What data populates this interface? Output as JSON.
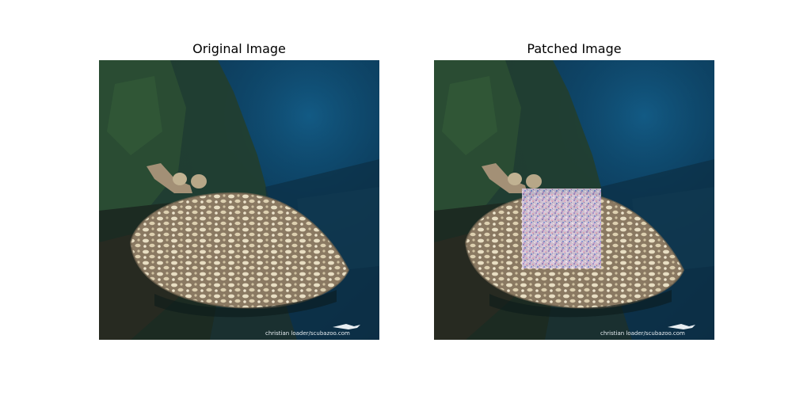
{
  "figure": {
    "panels": [
      {
        "title": "Original Image",
        "watermark": "christian loader/scubazoo.com",
        "has_patch": false
      },
      {
        "title": "Patched Image",
        "watermark": "christian loader/scubazoo.com",
        "has_patch": true
      }
    ]
  },
  "colors": {
    "water_deep": "#06304f",
    "water_mid": "#0f4a6b",
    "reef_green": "#2d4a33",
    "ray_body": "#8f8068",
    "ray_spots": "#e9dfc4",
    "patch_tint": "#d9c6e4"
  },
  "icons": {
    "watermark_logo": "shark-logo-icon"
  }
}
